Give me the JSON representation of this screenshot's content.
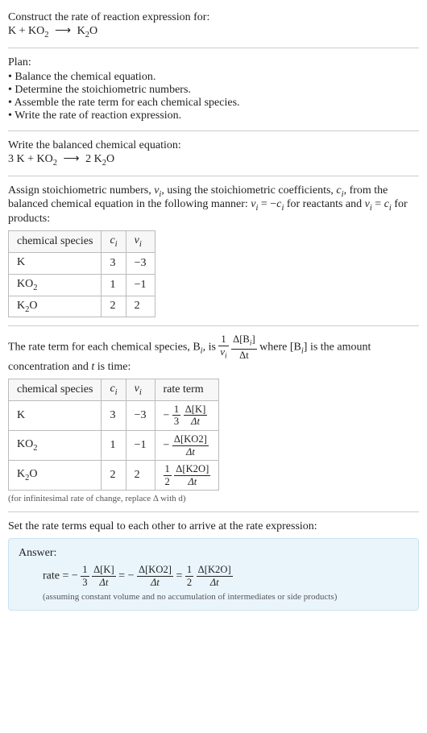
{
  "intro": {
    "prompt": "Construct the rate of reaction expression for:",
    "reaction_lhs": "K + KO",
    "reaction_lhs_sub": "2",
    "reaction_rhs": "K",
    "reaction_rhs_sub": "2",
    "reaction_rhs_tail": "O"
  },
  "plan": {
    "heading": "Plan:",
    "items": [
      "Balance the chemical equation.",
      "Determine the stoichiometric numbers.",
      "Assemble the rate term for each chemical species.",
      "Write the rate of reaction expression."
    ]
  },
  "balanced": {
    "heading": "Write the balanced chemical equation:",
    "lhs1_coef": "3 ",
    "lhs1": "K",
    "plus": " + ",
    "lhs2": "KO",
    "lhs2_sub": "2",
    "rhs_coef": "2 ",
    "rhs": "K",
    "rhs_sub": "2",
    "rhs_tail": "O"
  },
  "stoich_intro": {
    "t1": "Assign stoichiometric numbers, ",
    "nu": "ν",
    "sub_i": "i",
    "t2": ", using the stoichiometric coefficients, ",
    "c": "c",
    "t3": ", from the balanced chemical equation in the following manner: ",
    "eq_react": "ν",
    "eq_react2": " = −",
    "eq_react3": "c",
    "t4": " for reactants and ",
    "eq_prod": "ν",
    "eq_prod2": " = ",
    "eq_prod3": "c",
    "t5": " for products:"
  },
  "table1": {
    "headers": {
      "species": "chemical species",
      "ci": "c",
      "ci_sub": "i",
      "nui": "ν",
      "nui_sub": "i"
    },
    "rows": [
      {
        "name": "K",
        "name_sub": "",
        "ci": "3",
        "nui": "−3"
      },
      {
        "name": "KO",
        "name_sub": "2",
        "ci": "1",
        "nui": "−1"
      },
      {
        "name": "K",
        "name_sub": "2",
        "name_tail": "O",
        "ci": "2",
        "nui": "2"
      }
    ]
  },
  "rate_intro": {
    "t1": "The rate term for each chemical species, B",
    "sub_i": "i",
    "t2": ", is ",
    "frac1_num": "1",
    "frac1_den_a": "ν",
    "frac1_den_sub": "i",
    "frac2_num_a": "Δ[B",
    "frac2_num_sub": "i",
    "frac2_num_b": "]",
    "frac2_den": "Δt",
    "t3": " where [B",
    "t4": "] is the amount concentration and ",
    "t_var": "t",
    "t5": " is time:"
  },
  "table2": {
    "headers": {
      "species": "chemical species",
      "ci": "c",
      "ci_sub": "i",
      "nui": "ν",
      "nui_sub": "i",
      "rate": "rate term"
    },
    "rows": [
      {
        "name": "K",
        "name_sub": "",
        "ci": "3",
        "nui": "−3",
        "neg": "−",
        "f1n": "1",
        "f1d": "3",
        "f2n": "Δ[K]",
        "f2d": "Δt"
      },
      {
        "name": "KO",
        "name_sub": "2",
        "ci": "1",
        "nui": "−1",
        "neg": "−",
        "f1n": "",
        "f1d": "",
        "f2n": "Δ[KO2]",
        "f2d": "Δt"
      },
      {
        "name": "K",
        "name_sub": "2",
        "name_tail": "O",
        "ci": "2",
        "nui": "2",
        "neg": "",
        "f1n": "1",
        "f1d": "2",
        "f2n": "Δ[K2O]",
        "f2d": "Δt"
      }
    ],
    "note": "(for infinitesimal rate of change, replace Δ with d)"
  },
  "final": {
    "heading": "Set the rate terms equal to each other to arrive at the rate expression:"
  },
  "answer": {
    "label": "Answer:",
    "rate_word": "rate = ",
    "neg": "−",
    "f1n": "1",
    "f1d": "3",
    "f1bn": "Δ[K]",
    "f1bd": "Δt",
    "eq": " = ",
    "f2bn": "Δ[KO2]",
    "f2bd": "Δt",
    "f3n": "1",
    "f3d": "2",
    "f3bn": "Δ[K2O]",
    "f3bd": "Δt",
    "assume": "(assuming constant volume and no accumulation of intermediates or side products)"
  }
}
